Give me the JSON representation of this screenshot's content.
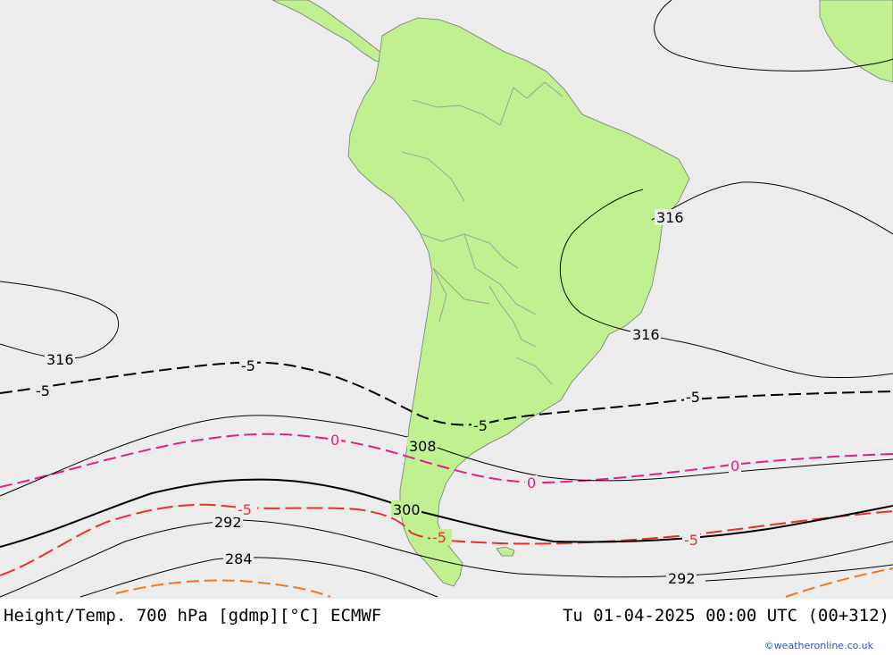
{
  "footer": {
    "title": "Height/Temp. 700 hPa [gdmp][°C] ECMWF",
    "datetime": "Tu 01-04-2025 00:00 UTC (00+312)",
    "credit": "©weatheronline.co.uk"
  },
  "colors": {
    "ocean": "#ececec",
    "land": "#c0f090",
    "border": "#999999",
    "height_contour": "#000000",
    "temp_minus5": "#000000",
    "temp_0": "#e0208a",
    "temp_5": "#e83030",
    "temp_10": "#f07820"
  },
  "height_labels": [
    "316",
    "316",
    "316",
    "308",
    "300",
    "292",
    "292",
    "284"
  ],
  "temp_labels": [
    "-5",
    "-5",
    "-5",
    "-5",
    "0",
    "0",
    "0",
    "-5",
    "-5",
    "-5"
  ]
}
